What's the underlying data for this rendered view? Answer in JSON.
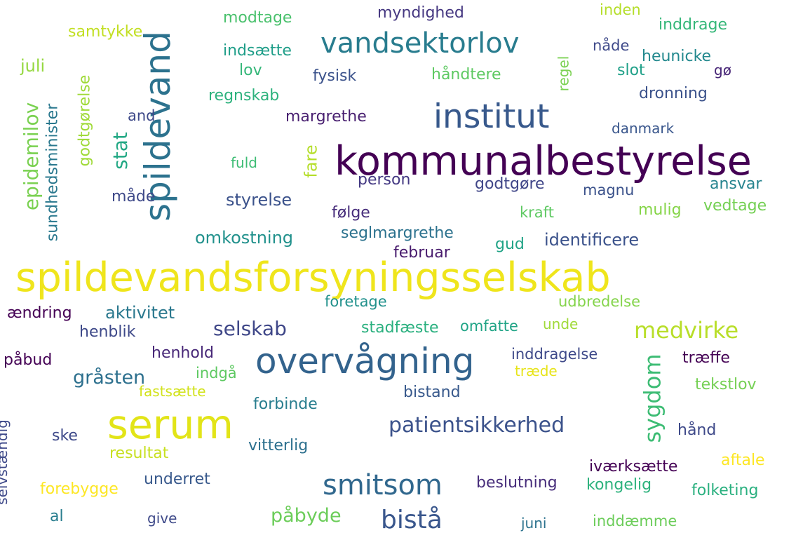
{
  "words": [
    {
      "text": "spildevandsforsyningsselskab",
      "color": "#efe51c"
    },
    {
      "text": "kommunalbestyrelse",
      "color": "#440154"
    },
    {
      "text": "overvågning",
      "color": "#33638d"
    },
    {
      "text": "serum",
      "color": "#e2e418"
    },
    {
      "text": "spildevand",
      "color": "#2c728e"
    },
    {
      "text": "institut",
      "color": "#38598c"
    },
    {
      "text": "vandsektorlov",
      "color": "#287c8e"
    },
    {
      "text": "smitsom",
      "color": "#31688e"
    },
    {
      "text": "medvirke",
      "color": "#b8de29"
    },
    {
      "text": "sygdom",
      "color": "#3dbc74"
    },
    {
      "text": "patientsikkerhed",
      "color": "#3b528b"
    },
    {
      "text": "bistå",
      "color": "#39568c"
    },
    {
      "text": "epidemilov",
      "color": "#7ad151"
    },
    {
      "text": "stat",
      "color": "#22a884"
    },
    {
      "text": "selskab",
      "color": "#3f4788"
    },
    {
      "text": "gråsten",
      "color": "#2d708e"
    },
    {
      "text": "påbyde",
      "color": "#6ccd5a"
    },
    {
      "text": "fare",
      "color": "#b5de2b"
    },
    {
      "text": "aktivitet",
      "color": "#2a788e"
    },
    {
      "text": "myndighed",
      "color": "#453781"
    },
    {
      "text": "modtage",
      "color": "#4ac16d"
    },
    {
      "text": "samtykke",
      "color": "#c2df23"
    },
    {
      "text": "indsætte",
      "color": "#1f9e89"
    },
    {
      "text": "lov",
      "color": "#35b779"
    },
    {
      "text": "fysisk",
      "color": "#3b528b"
    },
    {
      "text": "håndtere",
      "color": "#5ec962"
    },
    {
      "text": "regnskab",
      "color": "#2db27d"
    },
    {
      "text": "margrethe",
      "color": "#481f70"
    },
    {
      "text": "and",
      "color": "#3e4989"
    },
    {
      "text": "juli",
      "color": "#95d840"
    },
    {
      "text": "godtgørelse",
      "color": "#a0da39"
    },
    {
      "text": "sundhedsminister",
      "color": "#2a788e"
    },
    {
      "text": "fuld",
      "color": "#3dbc74"
    },
    {
      "text": "måde",
      "color": "#3e4989"
    },
    {
      "text": "styrelse",
      "color": "#3b528b"
    },
    {
      "text": "omkostning",
      "color": "#21918c"
    },
    {
      "text": "person",
      "color": "#443983"
    },
    {
      "text": "følge",
      "color": "#472d7b"
    },
    {
      "text": "seglmargrethe",
      "color": "#2c728e"
    },
    {
      "text": "godtgøre",
      "color": "#404688"
    },
    {
      "text": "februar",
      "color": "#481b6d"
    },
    {
      "text": "gud",
      "color": "#20a386"
    },
    {
      "text": "identificere",
      "color": "#3b528b"
    },
    {
      "text": "kraft",
      "color": "#5ec962"
    },
    {
      "text": "magnu",
      "color": "#3b528b"
    },
    {
      "text": "mulig",
      "color": "#86d549"
    },
    {
      "text": "ansvar",
      "color": "#25838e"
    },
    {
      "text": "vedtage",
      "color": "#75d054"
    },
    {
      "text": "danmark",
      "color": "#39568c"
    },
    {
      "text": "inden",
      "color": "#b5de2b"
    },
    {
      "text": "inddrage",
      "color": "#35b779"
    },
    {
      "text": "nåde",
      "color": "#3e4989"
    },
    {
      "text": "heunicke",
      "color": "#23898e"
    },
    {
      "text": "regel",
      "color": "#7ad151"
    },
    {
      "text": "slot",
      "color": "#1fa088"
    },
    {
      "text": "gø",
      "color": "#482677"
    },
    {
      "text": "dronning",
      "color": "#3b528b"
    },
    {
      "text": "ændring",
      "color": "#440154"
    },
    {
      "text": "henblik",
      "color": "#3e4989"
    },
    {
      "text": "foretage",
      "color": "#21918c"
    },
    {
      "text": "udbredelse",
      "color": "#84d44b"
    },
    {
      "text": "stadfæste",
      "color": "#2ab07f"
    },
    {
      "text": "omfatte",
      "color": "#20a486"
    },
    {
      "text": "unde",
      "color": "#a0da39"
    },
    {
      "text": "påbud",
      "color": "#440154"
    },
    {
      "text": "henhold",
      "color": "#482878"
    },
    {
      "text": "indgå",
      "color": "#5ec962"
    },
    {
      "text": "inddragelse",
      "color": "#3e4989"
    },
    {
      "text": "træffe",
      "color": "#440154"
    },
    {
      "text": "træde",
      "color": "#e7e419"
    },
    {
      "text": "fastsætte",
      "color": "#d2e21b"
    },
    {
      "text": "bistand",
      "color": "#38598c"
    },
    {
      "text": "tekstlov",
      "color": "#75d054"
    },
    {
      "text": "forbinde",
      "color": "#287d8e"
    },
    {
      "text": "selvstændig",
      "color": "#3e4989"
    },
    {
      "text": "ske",
      "color": "#3e4989"
    },
    {
      "text": "resultat",
      "color": "#c8e020"
    },
    {
      "text": "vitterlig",
      "color": "#2d708e"
    },
    {
      "text": "hånd",
      "color": "#3e4989"
    },
    {
      "text": "iværksætte",
      "color": "#440154"
    },
    {
      "text": "aftale",
      "color": "#fde725"
    },
    {
      "text": "forebygge",
      "color": "#fde725"
    },
    {
      "text": "underret",
      "color": "#38598c"
    },
    {
      "text": "beslutning",
      "color": "#472d7b"
    },
    {
      "text": "kongelig",
      "color": "#2db27d"
    },
    {
      "text": "folketing",
      "color": "#2ab07f"
    },
    {
      "text": "al",
      "color": "#287d8e"
    },
    {
      "text": "give",
      "color": "#3e4989"
    },
    {
      "text": "juni",
      "color": "#2c728e"
    },
    {
      "text": "inddæmme",
      "color": "#6ccd5a"
    }
  ]
}
